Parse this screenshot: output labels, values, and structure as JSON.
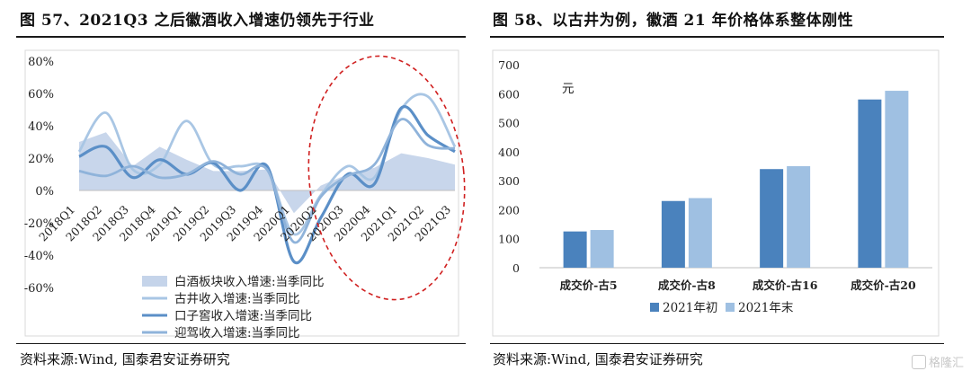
{
  "left": {
    "title": "图 57、2021Q3 之后徽酒收入增速仍领先于行业",
    "source": "资料来源:Wind, 国泰君安证券研究"
  },
  "right": {
    "title": "图 58、以古井为例，徽酒 21 年价格体系整体刚性",
    "source": "资料来源:Wind, 国泰君安证券研究"
  },
  "watermark": "格隆汇",
  "chart_data": [
    {
      "type": "line",
      "title": "",
      "xlabel": "",
      "ylabel": "",
      "x": [
        "2018Q1",
        "2018Q2",
        "2018Q3",
        "2018Q4",
        "2019Q1",
        "2019Q2",
        "2019Q3",
        "2019Q4",
        "2020Q1",
        "2020Q2",
        "2020Q3",
        "2020Q4",
        "2021Q1",
        "2021Q2",
        "2021Q3"
      ],
      "ylim": [
        -60,
        80
      ],
      "yticks": [
        -60,
        -40,
        -20,
        0,
        20,
        40,
        60,
        80
      ],
      "ytick_labels": [
        "-60%",
        "-40%",
        "-20%",
        "0%",
        "20%",
        "40%",
        "60%",
        "80%"
      ],
      "series": [
        {
          "name": "白酒板块收入增速:当季同比",
          "style": "area",
          "color": "#c5d4ea",
          "values": [
            30,
            36,
            15,
            27,
            19,
            12,
            12,
            13,
            -14,
            3,
            10,
            14,
            23,
            20,
            16
          ]
        },
        {
          "name": "古井收入增速:当季同比",
          "style": "line",
          "color": "#a9c6e4",
          "values": [
            24,
            48,
            13,
            16,
            43,
            16,
            15,
            13,
            -27,
            -3,
            15,
            8,
            50,
            58,
            27
          ]
        },
        {
          "name": "口子窖收入增速:当季同比",
          "style": "line",
          "color": "#5b8fc7",
          "values": [
            21,
            27,
            8,
            19,
            10,
            17,
            0,
            15,
            -44,
            -17,
            10,
            4,
            51,
            34,
            24
          ]
        },
        {
          "name": "迎驾收入增速:当季同比",
          "style": "line",
          "color": "#8fb3da",
          "values": [
            12,
            9,
            15,
            8,
            10,
            18,
            10,
            13,
            -32,
            -4,
            9,
            16,
            44,
            28,
            26
          ]
        }
      ],
      "annotations": [
        "red dashed ellipse highlighting 2020Q2–2021Q3"
      ],
      "grid": false,
      "legend": "bottom"
    },
    {
      "type": "bar",
      "title": "",
      "xlabel": "",
      "ylabel": "元",
      "categories": [
        "成交价-古5",
        "成交价-古8",
        "成交价-古16",
        "成交价-古20"
      ],
      "ylim": [
        0,
        700
      ],
      "yticks": [
        0,
        100,
        200,
        300,
        400,
        500,
        600,
        700
      ],
      "series": [
        {
          "name": "2021年初",
          "color": "#4a82bd",
          "values": [
            125,
            230,
            340,
            580
          ]
        },
        {
          "name": "2021年末",
          "color": "#9fc0e2",
          "values": [
            130,
            240,
            350,
            610
          ]
        }
      ],
      "grid": false,
      "legend": "bottom"
    }
  ]
}
